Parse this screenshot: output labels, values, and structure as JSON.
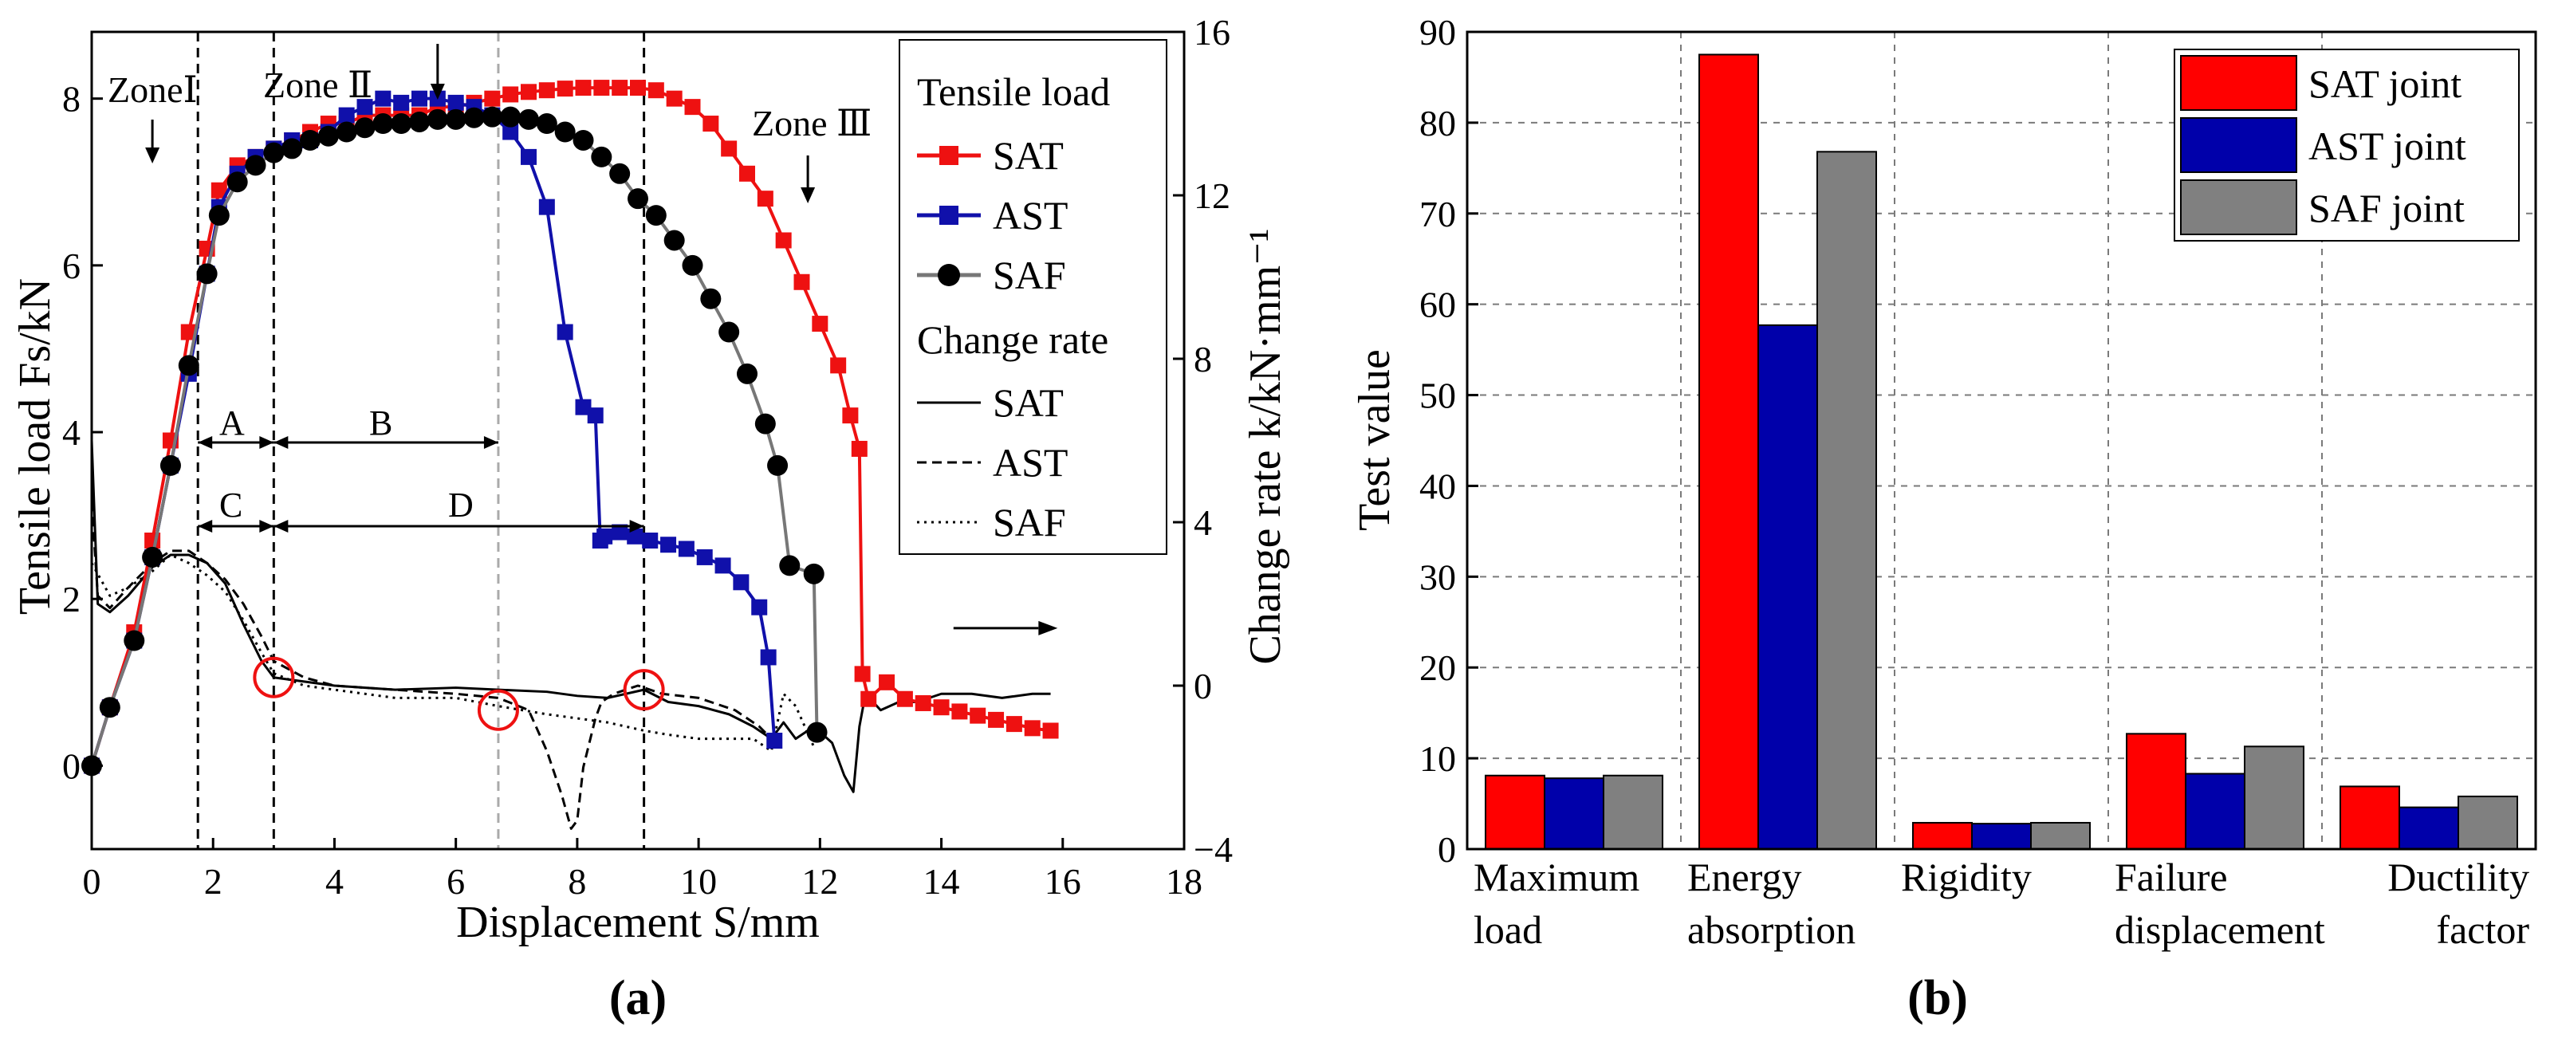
{
  "chart_data": [
    {
      "id": "a",
      "type": "line",
      "caption": "(a)",
      "xlabel": "Displacement S/mm",
      "ylabel_left": "Tensile load Fs/kN",
      "ylabel_right": "Change rate k/kN·mm⁻¹",
      "xlim": [
        0,
        18
      ],
      "ylim_left": [
        -1,
        8.8
      ],
      "ylim_right": [
        -4,
        16
      ],
      "xticks": [
        "0",
        "2",
        "4",
        "6",
        "8",
        "10",
        "12",
        "14",
        "16",
        "18"
      ],
      "yticks_left": [
        "0",
        "2",
        "4",
        "6",
        "8"
      ],
      "yticks_right": [
        "-4",
        "0",
        "4",
        "8",
        "12",
        "16"
      ],
      "legend_title_load": "Tensile load",
      "legend_title_rate": "Change rate",
      "zone_labels": [
        "ZoneⅠ",
        "Zone Ⅱ",
        "Zone Ⅲ"
      ],
      "interval_labels": [
        "A",
        "B",
        "C",
        "D"
      ],
      "vertical_markers_x": [
        1.75,
        3.0,
        6.7,
        9.1
      ],
      "circle_markers_x": [
        3.0,
        6.7,
        9.1
      ],
      "load_series": [
        {
          "name": "SAT",
          "color": "#ee1111",
          "marker": "square",
          "x": [
            0,
            0.3,
            0.7,
            1.0,
            1.3,
            1.6,
            1.9,
            2.1,
            2.4,
            2.7,
            3.0,
            3.3,
            3.6,
            3.9,
            4.2,
            4.5,
            4.8,
            5.1,
            5.4,
            5.7,
            6.0,
            6.3,
            6.6,
            6.9,
            7.2,
            7.5,
            7.8,
            8.1,
            8.4,
            8.7,
            9.0,
            9.3,
            9.6,
            9.9,
            10.2,
            10.5,
            10.8,
            11.1,
            11.4,
            11.7,
            12.0,
            12.3,
            12.5,
            12.65,
            12.7,
            12.8,
            13.1,
            13.4,
            13.7,
            14.0,
            14.3,
            14.6,
            14.9,
            15.2,
            15.5,
            15.8
          ],
          "y": [
            0,
            0.7,
            1.6,
            2.7,
            3.9,
            5.2,
            6.2,
            6.9,
            7.2,
            7.3,
            7.4,
            7.5,
            7.6,
            7.7,
            7.7,
            7.8,
            7.8,
            7.8,
            7.8,
            7.9,
            7.9,
            7.95,
            8.0,
            8.05,
            8.08,
            8.1,
            8.12,
            8.13,
            8.13,
            8.13,
            8.13,
            8.1,
            8.0,
            7.9,
            7.7,
            7.4,
            7.1,
            6.8,
            6.3,
            5.8,
            5.3,
            4.8,
            4.2,
            3.8,
            1.1,
            0.8,
            1.0,
            0.8,
            0.75,
            0.7,
            0.65,
            0.6,
            0.55,
            0.5,
            0.45,
            0.42
          ]
        },
        {
          "name": "AST",
          "color": "#1010aa",
          "marker": "square",
          "x": [
            0,
            0.3,
            0.7,
            1.0,
            1.3,
            1.6,
            1.9,
            2.1,
            2.4,
            2.7,
            3.0,
            3.3,
            3.6,
            3.9,
            4.2,
            4.5,
            4.8,
            5.1,
            5.4,
            5.7,
            6.0,
            6.3,
            6.6,
            6.9,
            7.2,
            7.5,
            7.8,
            8.1,
            8.3,
            8.38,
            8.45,
            8.7,
            8.95,
            9.2,
            9.5,
            9.8,
            10.1,
            10.4,
            10.7,
            11.0,
            11.15,
            11.25
          ],
          "y": [
            0,
            0.7,
            1.5,
            2.5,
            3.6,
            4.7,
            5.9,
            6.7,
            7.1,
            7.3,
            7.4,
            7.5,
            7.5,
            7.6,
            7.8,
            7.9,
            8.0,
            7.95,
            8.0,
            8.0,
            7.95,
            7.9,
            7.8,
            7.6,
            7.3,
            6.7,
            5.2,
            4.3,
            4.2,
            2.7,
            2.75,
            2.8,
            2.75,
            2.7,
            2.65,
            2.6,
            2.5,
            2.4,
            2.2,
            1.9,
            1.3,
            0.3
          ]
        },
        {
          "name": "SAF",
          "color": "#000000",
          "marker": "circle",
          "x": [
            0,
            0.3,
            0.7,
            1.0,
            1.3,
            1.6,
            1.9,
            2.1,
            2.4,
            2.7,
            3.0,
            3.3,
            3.6,
            3.9,
            4.2,
            4.5,
            4.8,
            5.1,
            5.4,
            5.7,
            6.0,
            6.3,
            6.6,
            6.9,
            7.2,
            7.5,
            7.8,
            8.1,
            8.4,
            8.7,
            9.0,
            9.3,
            9.6,
            9.9,
            10.2,
            10.5,
            10.8,
            11.1,
            11.3,
            11.5,
            11.9,
            11.95
          ],
          "y": [
            0,
            0.7,
            1.5,
            2.5,
            3.6,
            4.8,
            5.9,
            6.6,
            7.0,
            7.2,
            7.35,
            7.4,
            7.5,
            7.55,
            7.6,
            7.65,
            7.7,
            7.7,
            7.72,
            7.75,
            7.75,
            7.77,
            7.78,
            7.78,
            7.75,
            7.7,
            7.6,
            7.5,
            7.3,
            7.1,
            6.8,
            6.6,
            6.3,
            6.0,
            5.6,
            5.2,
            4.7,
            4.1,
            3.6,
            2.4,
            2.3,
            0.4
          ]
        }
      ],
      "rate_series": [
        {
          "name": "SAT",
          "dash": "solid",
          "x": [
            0,
            0.1,
            0.3,
            0.6,
            1.0,
            1.3,
            1.6,
            1.9,
            2.2,
            2.5,
            2.8,
            3.0,
            3.5,
            4.0,
            5.0,
            6.0,
            6.7,
            7.5,
            8.0,
            8.5,
            9.1,
            9.5,
            10.0,
            10.5,
            10.9,
            11.1,
            11.2,
            11.4,
            11.6,
            11.9,
            12.2,
            12.4,
            12.55,
            12.65,
            12.75,
            13.0,
            13.3,
            13.6,
            14.0,
            14.5,
            15.0,
            15.5,
            15.8
          ],
          "y": [
            6,
            2.0,
            1.8,
            2.2,
            2.9,
            3.2,
            3.2,
            3.0,
            2.5,
            1.5,
            0.6,
            0.2,
            0.1,
            0.0,
            -0.1,
            -0.05,
            -0.1,
            -0.15,
            -0.25,
            -0.3,
            -0.1,
            -0.4,
            -0.5,
            -0.7,
            -1.0,
            -1.2,
            -1.3,
            -0.9,
            -1.3,
            -1.0,
            -1.4,
            -2.2,
            -2.6,
            -1.0,
            -0.2,
            -0.6,
            -0.4,
            -0.4,
            -0.2,
            -0.2,
            -0.3,
            -0.2,
            -0.2
          ]
        },
        {
          "name": "AST",
          "dash": "dashed",
          "x": [
            0,
            0.1,
            0.3,
            0.6,
            1.0,
            1.3,
            1.6,
            1.9,
            2.2,
            2.5,
            2.8,
            3.0,
            3.5,
            4.0,
            5.0,
            6.0,
            6.7,
            7.2,
            7.5,
            7.75,
            7.9,
            8.0,
            8.1,
            8.3,
            8.4,
            8.6,
            9.0,
            9.4,
            10.0,
            10.6,
            11.0,
            11.2
          ],
          "y": [
            4.5,
            2.2,
            1.9,
            2.4,
            3.0,
            3.3,
            3.3,
            3.0,
            2.6,
            2.0,
            1.2,
            0.6,
            0.2,
            0.0,
            -0.1,
            -0.2,
            -0.3,
            -0.6,
            -1.6,
            -2.7,
            -3.5,
            -3.3,
            -2.0,
            -0.8,
            -0.4,
            -0.2,
            0.0,
            -0.2,
            -0.3,
            -0.6,
            -1.0,
            -1.3
          ]
        },
        {
          "name": "SAF",
          "dash": "dotted",
          "x": [
            0,
            0.3,
            0.6,
            1.0,
            1.3,
            1.6,
            1.9,
            2.2,
            2.5,
            2.8,
            3.0,
            3.5,
            4.0,
            5.0,
            6.0,
            6.7,
            7.5,
            8.5,
            9.1,
            9.5,
            10.0,
            10.5,
            10.9,
            11.2,
            11.4,
            11.6,
            11.9
          ],
          "y": [
            3.0,
            2.2,
            2.4,
            2.8,
            3.2,
            3.0,
            2.7,
            2.3,
            1.6,
            0.8,
            0.3,
            0.0,
            -0.1,
            -0.3,
            -0.3,
            -0.5,
            -0.7,
            -0.9,
            -1.1,
            -1.2,
            -1.3,
            -1.3,
            -1.3,
            -1.6,
            -0.2,
            -0.5,
            -1.5
          ]
        }
      ]
    },
    {
      "id": "b",
      "type": "bar",
      "caption": "(b)",
      "ylabel": "Test value",
      "ylim": [
        0,
        90
      ],
      "yticks": [
        "0",
        "10",
        "20",
        "30",
        "40",
        "50",
        "60",
        "70",
        "80",
        "90"
      ],
      "categories": [
        {
          "line1": "Maximum",
          "line2": "load",
          "align": "left"
        },
        {
          "line1": "Energy",
          "line2": "absorption",
          "align": "left"
        },
        {
          "line1": "Rigidity",
          "line2": "",
          "align": "left"
        },
        {
          "line1": "Failure",
          "line2": "displacement",
          "align": "left"
        },
        {
          "line1": "Ductility",
          "line2": "factor",
          "align": "right"
        }
      ],
      "series": [
        {
          "name": "SAT joint",
          "color": "#ff0000",
          "values": [
            8.1,
            87.5,
            2.9,
            12.7,
            6.9
          ]
        },
        {
          "name": "AST joint",
          "color": "#0000aa",
          "values": [
            7.8,
            57.7,
            2.8,
            8.3,
            4.6
          ]
        },
        {
          "name": "SAF joint",
          "color": "#808080",
          "values": [
            8.1,
            76.8,
            2.9,
            11.3,
            5.8
          ]
        }
      ]
    }
  ]
}
